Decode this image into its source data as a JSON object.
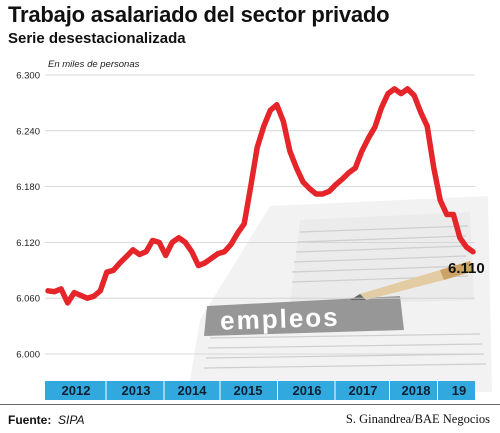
{
  "header": {
    "title": "Trabajo asalariado del sector privado",
    "subtitle": "Serie desestacionalizada"
  },
  "footer": {
    "source_label": "Fuente:",
    "source_value": "SIPA",
    "credit": "S. Ginandrea/BAE Negocios"
  },
  "image": {
    "stamp_text": "empleos"
  },
  "chart_data": {
    "type": "line",
    "title": "Trabajo asalariado del sector privado",
    "subtitle": "Serie desestacionalizada",
    "unit_note": "En miles de personas",
    "ylim": [
      6000,
      6300
    ],
    "yticks": [
      "6.300",
      "6.240",
      "6.180",
      "6.120",
      "6.060",
      "6.000"
    ],
    "ytick_values": [
      6300,
      6240,
      6180,
      6120,
      6060,
      6000
    ],
    "year_labels": [
      "2012",
      "2013",
      "2014",
      "2015",
      "2016",
      "2017",
      "2018",
      "19"
    ],
    "grid": true,
    "line_color": "#e5252a",
    "band_color": "#31a9df",
    "end_label": "6.110",
    "series": [
      {
        "values": [
          6068,
          6067,
          6070,
          6055,
          6066,
          6063,
          6060,
          6062,
          6068,
          6088,
          6090,
          6098,
          6105,
          6112,
          6107,
          6110,
          6122,
          6120,
          6106,
          6120,
          6125,
          6120,
          6110,
          6095,
          6098,
          6103,
          6108,
          6110,
          6118,
          6130,
          6140,
          6180,
          6222,
          6245,
          6262,
          6268,
          6250,
          6218,
          6200,
          6185,
          6178,
          6172,
          6172,
          6175,
          6182,
          6188,
          6195,
          6200,
          6218,
          6232,
          6244,
          6265,
          6280,
          6285,
          6280,
          6285,
          6278,
          6260,
          6245,
          6200,
          6165,
          6150,
          6150,
          6125,
          6115,
          6110
        ]
      }
    ]
  }
}
